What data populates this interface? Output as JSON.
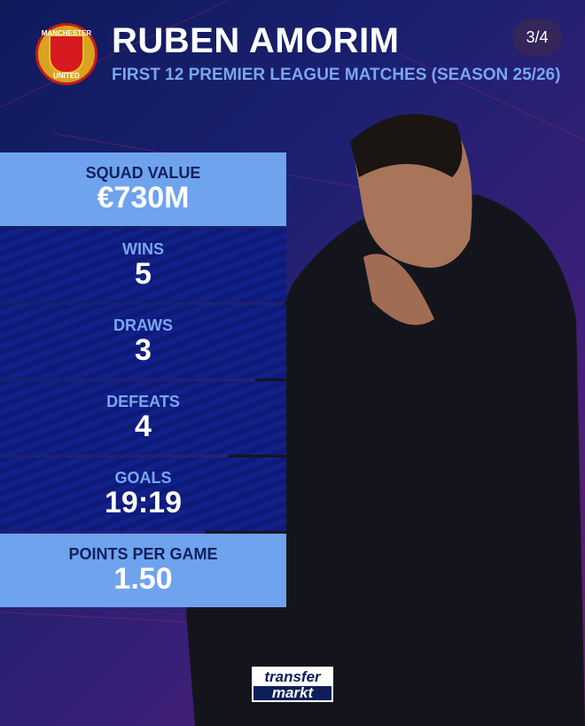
{
  "header": {
    "title": "RUBEN AMORIM",
    "subtitle": "FIRST 12 PREMIER LEAGUE MATCHES (SEASON 25/26)",
    "pager": "3/4",
    "crest": {
      "top_text": "MANCHESTER",
      "bottom_text": "UNITED"
    }
  },
  "stats": [
    {
      "label": "SQUAD VALUE",
      "value": "€730M",
      "style": "light"
    },
    {
      "label": "WINS",
      "value": "5",
      "style": "dark"
    },
    {
      "label": "DRAWS",
      "value": "3",
      "style": "dark"
    },
    {
      "label": "DEFEATS",
      "value": "4",
      "style": "dark"
    },
    {
      "label": "GOALS",
      "value": "19:19",
      "style": "dark"
    },
    {
      "label": "POINTS PER GAME",
      "value": "1.50",
      "style": "light"
    }
  ],
  "logo": {
    "line1": "transfer",
    "line2": "markt"
  },
  "colors": {
    "accent_light": "#6fa3ee",
    "navy": "#0e1a78",
    "subtitle": "#7aa6f0"
  }
}
